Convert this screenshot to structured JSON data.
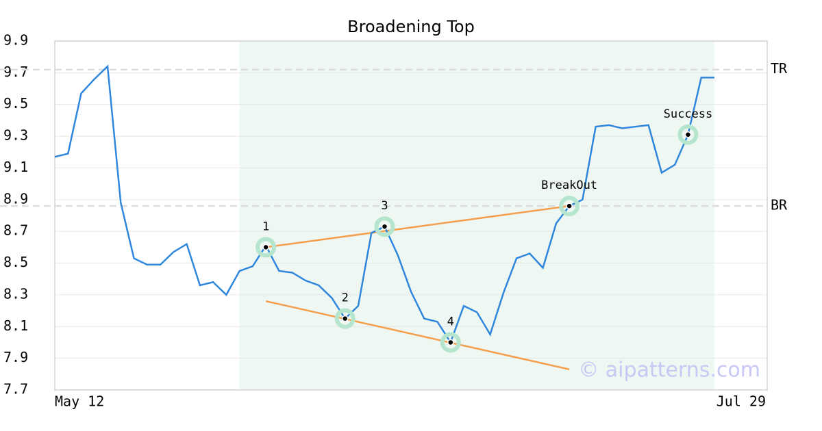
{
  "chart_data": {
    "type": "line",
    "title": "Broadening Top",
    "x": [
      0,
      1,
      2,
      3,
      4,
      5,
      6,
      7,
      8,
      9,
      10,
      11,
      12,
      13,
      14,
      15,
      16,
      17,
      18,
      19,
      20,
      21,
      22,
      23,
      24,
      25,
      26,
      27,
      28,
      29,
      30,
      31,
      32,
      33,
      34,
      35,
      36,
      37,
      38,
      39,
      40,
      41,
      42,
      43,
      44,
      45,
      46,
      47,
      48,
      49,
      50
    ],
    "xlim": [
      0,
      54
    ],
    "xticks": [
      {
        "value": 0,
        "label": "May 12"
      },
      {
        "value": 54,
        "label": "Jul 29"
      }
    ],
    "ylim": [
      7.7,
      9.9
    ],
    "yticks": [
      7.7,
      7.9,
      8.1,
      8.3,
      8.5,
      8.7,
      8.9,
      9.1,
      9.3,
      9.5,
      9.7,
      9.9
    ],
    "grid": true,
    "series": [
      {
        "color": "#2f87dd",
        "values": [
          9.17,
          9.19,
          9.57,
          9.66,
          9.74,
          8.88,
          8.53,
          8.49,
          8.49,
          8.57,
          8.62,
          8.36,
          8.38,
          8.3,
          8.45,
          8.48,
          8.61,
          8.45,
          8.44,
          8.39,
          8.36,
          8.28,
          8.15,
          8.23,
          8.69,
          8.73,
          8.55,
          8.32,
          8.15,
          8.13,
          8.0,
          8.23,
          8.19,
          8.05,
          8.31,
          8.53,
          8.56,
          8.47,
          8.75,
          8.86,
          8.9,
          9.36,
          9.37,
          9.35,
          9.36,
          9.37,
          9.07,
          9.12,
          9.31,
          9.67,
          9.67
        ]
      }
    ],
    "shaded_region": {
      "x": [
        14,
        50
      ],
      "color": "#eef7f2"
    },
    "hlines": [
      {
        "label": "TR",
        "value": 9.72
      },
      {
        "label": "BR",
        "value": 8.86
      }
    ],
    "trend_lines": [
      {
        "color": "#f59e4c",
        "x": [
          16,
          39
        ],
        "values": [
          8.6,
          8.86
        ]
      },
      {
        "color": "#f59e4c",
        "x": [
          16,
          39
        ],
        "values": [
          8.26,
          7.83
        ]
      }
    ],
    "points": [
      {
        "label": "1",
        "x": 16,
        "value": 8.6
      },
      {
        "label": "2",
        "x": 22,
        "value": 8.15
      },
      {
        "label": "3",
        "x": 25,
        "value": 8.73
      },
      {
        "label": "4",
        "x": 30,
        "value": 8.0
      },
      {
        "label": "BreakOut",
        "x": 39,
        "value": 8.86
      },
      {
        "label": "Success",
        "x": 48,
        "value": 9.31
      }
    ],
    "watermark": "© aipatterns.com"
  }
}
